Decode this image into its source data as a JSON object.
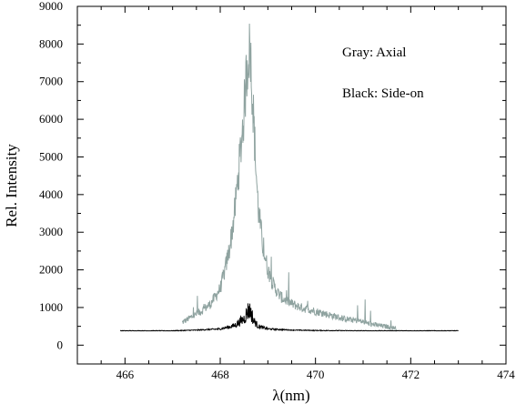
{
  "chart_data": {
    "type": "line",
    "title": "",
    "xlabel": "λ(nm)",
    "ylabel": "Rel. Intensity",
    "xlim": [
      465,
      474
    ],
    "ylim": [
      -500,
      9000
    ],
    "x_ticks": [
      466,
      468,
      470,
      472,
      474
    ],
    "y_ticks": [
      0,
      1000,
      2000,
      3000,
      4000,
      5000,
      6000,
      7000,
      8000,
      9000
    ],
    "grid": false,
    "annotations": [
      "Gray:  Axial",
      "Black: Side-on"
    ],
    "series": [
      {
        "color": "#8fa3a0",
        "x": [
          467.2,
          467.4,
          467.6,
          467.8,
          468.0,
          468.1,
          468.2,
          468.3,
          468.4,
          468.5,
          468.55,
          468.6,
          468.65,
          468.7,
          468.75,
          468.8,
          468.9,
          469.0,
          469.1,
          469.2,
          469.3,
          469.5,
          469.7,
          470.0,
          470.3,
          470.6,
          470.9,
          471.2,
          471.7
        ],
        "y": [
          600,
          750,
          900,
          1100,
          1500,
          2000,
          2600,
          3500,
          4800,
          6200,
          7200,
          7900,
          7400,
          6000,
          4700,
          3600,
          2600,
          2000,
          1650,
          1400,
          1250,
          1100,
          1000,
          900,
          800,
          700,
          650,
          550,
          450
        ]
      },
      {
        "color": "#000000",
        "x": [
          465.9,
          467.0,
          467.5,
          468.0,
          468.3,
          468.5,
          468.6,
          468.65,
          468.7,
          468.8,
          469.0,
          469.5,
          470.0,
          471.0,
          473.0
        ],
        "y": [
          380,
          380,
          400,
          430,
          520,
          700,
          950,
          850,
          650,
          500,
          430,
          400,
          390,
          380,
          380
        ]
      }
    ]
  }
}
